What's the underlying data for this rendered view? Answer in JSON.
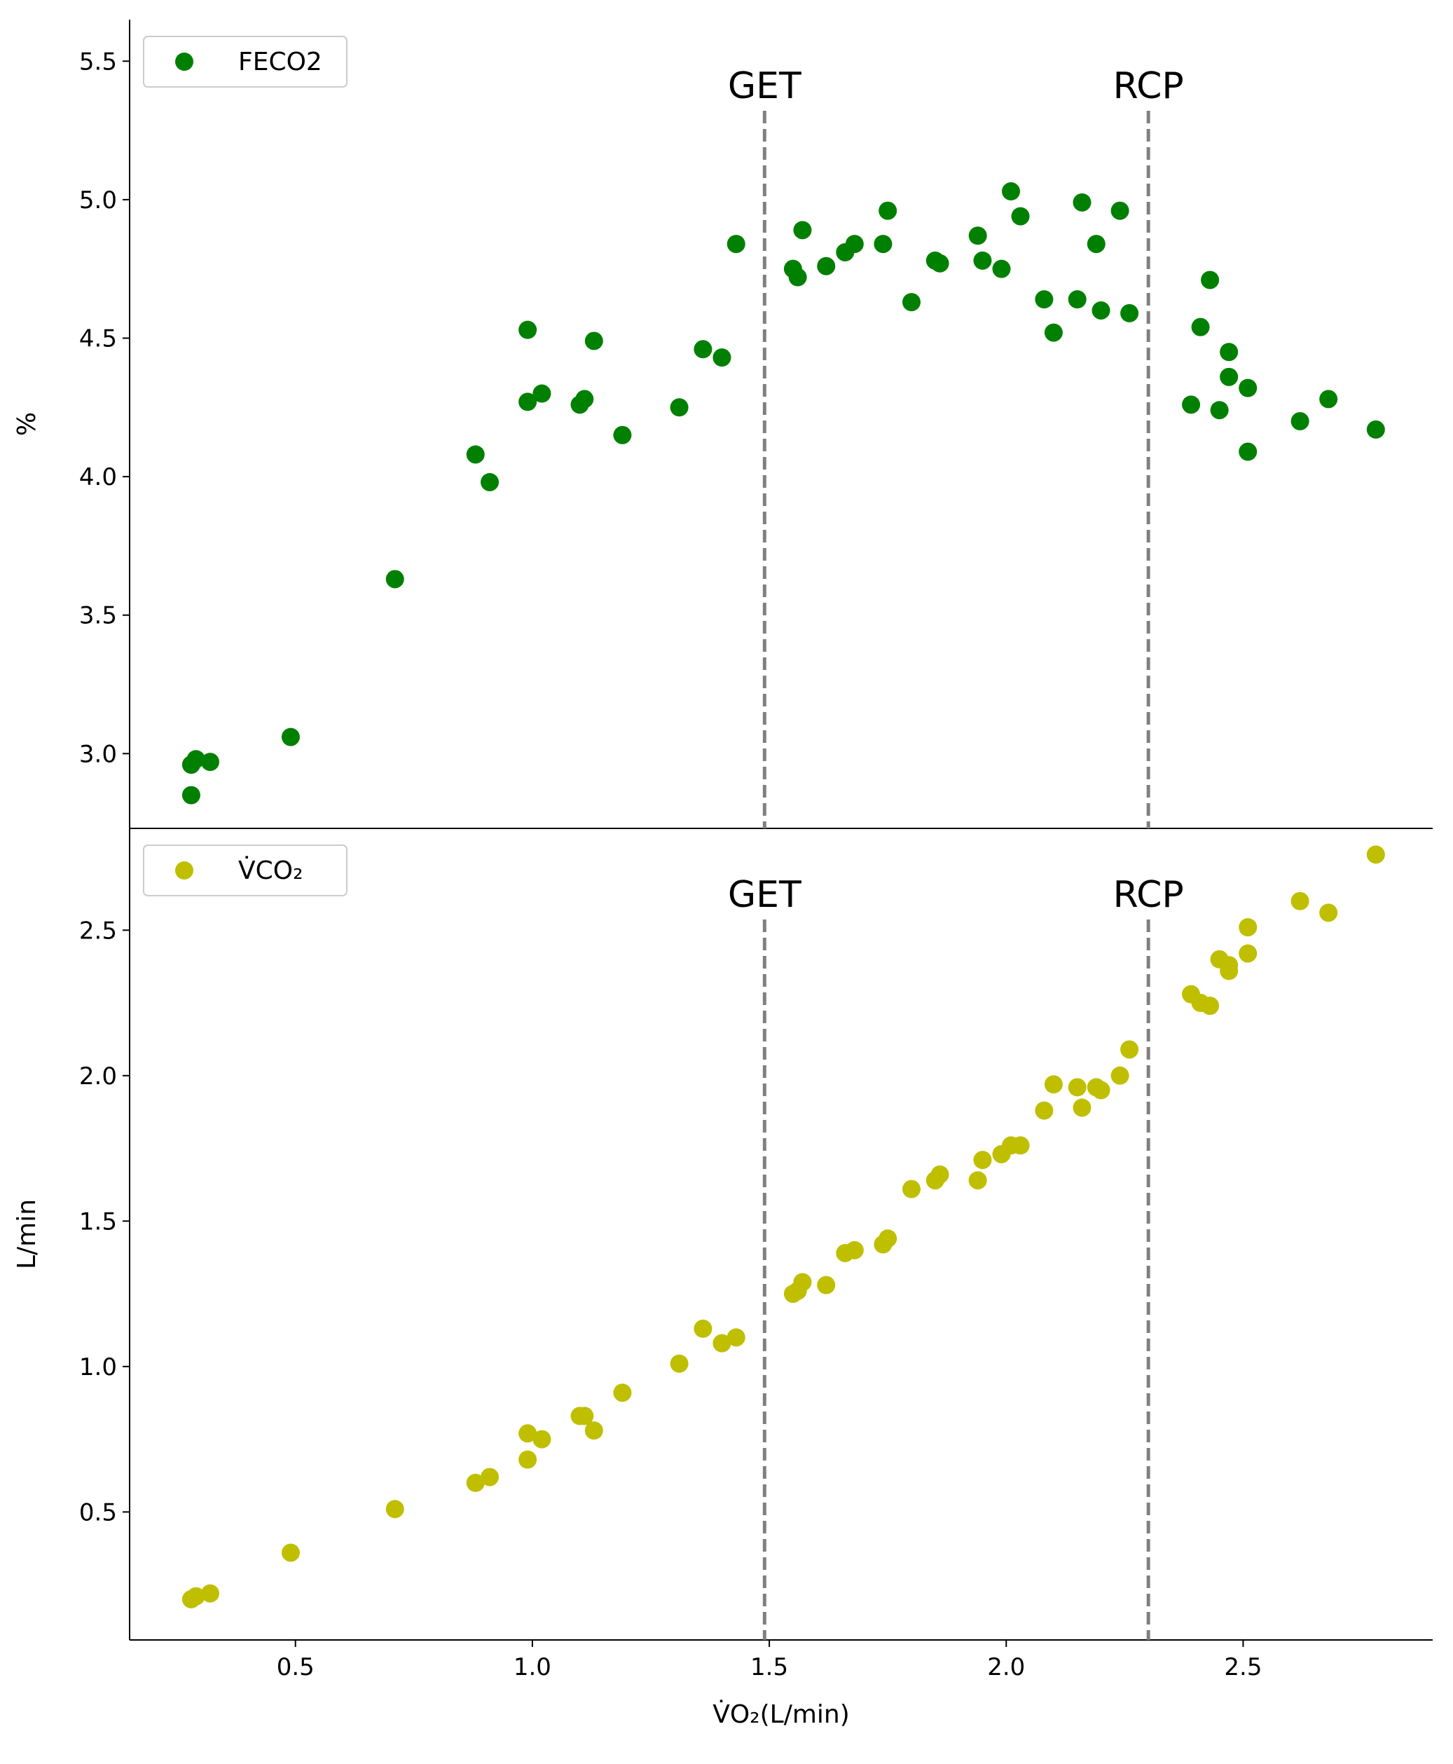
{
  "chart_data": [
    {
      "type": "scatter",
      "ylabel": "%",
      "ylim": [
        2.73,
        5.65
      ],
      "xlim": [
        0.15,
        2.9
      ],
      "yticks": [
        "3.0",
        "3.5",
        "4.0",
        "4.5",
        "5.0",
        "5.5"
      ],
      "legend": {
        "position": "upper-left"
      },
      "series": [
        {
          "name": "FECO2",
          "color": "#008000",
          "points": [
            [
              0.28,
              2.85
            ],
            [
              0.28,
              2.96
            ],
            [
              0.29,
              2.98
            ],
            [
              0.32,
              2.97
            ],
            [
              0.49,
              3.06
            ],
            [
              0.71,
              3.63
            ],
            [
              0.88,
              4.08
            ],
            [
              0.91,
              3.98
            ],
            [
              0.99,
              4.27
            ],
            [
              0.99,
              4.53
            ],
            [
              1.02,
              4.3
            ],
            [
              1.1,
              4.26
            ],
            [
              1.11,
              4.28
            ],
            [
              1.13,
              4.49
            ],
            [
              1.19,
              4.15
            ],
            [
              1.31,
              4.25
            ],
            [
              1.36,
              4.46
            ],
            [
              1.4,
              4.43
            ],
            [
              1.43,
              4.84
            ],
            [
              1.55,
              4.75
            ],
            [
              1.56,
              4.72
            ],
            [
              1.57,
              4.89
            ],
            [
              1.62,
              4.76
            ],
            [
              1.66,
              4.81
            ],
            [
              1.68,
              4.84
            ],
            [
              1.74,
              4.84
            ],
            [
              1.75,
              4.96
            ],
            [
              1.8,
              4.63
            ],
            [
              1.85,
              4.78
            ],
            [
              1.86,
              4.77
            ],
            [
              1.94,
              4.87
            ],
            [
              1.95,
              4.78
            ],
            [
              1.99,
              4.75
            ],
            [
              2.01,
              5.03
            ],
            [
              2.03,
              4.94
            ],
            [
              2.08,
              4.64
            ],
            [
              2.1,
              4.52
            ],
            [
              2.15,
              4.64
            ],
            [
              2.16,
              4.99
            ],
            [
              2.19,
              4.84
            ],
            [
              2.2,
              4.6
            ],
            [
              2.24,
              4.96
            ],
            [
              2.26,
              4.59
            ],
            [
              2.39,
              4.26
            ],
            [
              2.41,
              4.54
            ],
            [
              2.43,
              4.71
            ],
            [
              2.45,
              4.24
            ],
            [
              2.47,
              4.45
            ],
            [
              2.47,
              4.36
            ],
            [
              2.51,
              4.32
            ],
            [
              2.51,
              4.09
            ],
            [
              2.62,
              4.2
            ],
            [
              2.68,
              4.28
            ],
            [
              2.78,
              4.17
            ]
          ]
        }
      ],
      "vlines": [
        {
          "x": 1.49,
          "label": "GET",
          "color": "#808080",
          "style": "dashed"
        },
        {
          "x": 2.3,
          "label": "RCP",
          "color": "#808080",
          "style": "dashed"
        }
      ]
    },
    {
      "type": "scatter",
      "xlabel": "V̇O₂(L/min)",
      "ylabel": "L/min",
      "ylim": [
        0.06,
        2.85
      ],
      "xlim": [
        0.15,
        2.9
      ],
      "xticks": [
        "0.5",
        "1.0",
        "1.5",
        "2.0",
        "2.5"
      ],
      "yticks": [
        "0.5",
        "1.0",
        "1.5",
        "2.0",
        "2.5"
      ],
      "legend": {
        "position": "upper-left"
      },
      "series": [
        {
          "name": "V̇CO₂",
          "color": "#bfbf00",
          "points": [
            [
              0.28,
              0.2
            ],
            [
              0.29,
              0.21
            ],
            [
              0.32,
              0.22
            ],
            [
              0.49,
              0.36
            ],
            [
              0.71,
              0.51
            ],
            [
              0.88,
              0.6
            ],
            [
              0.91,
              0.62
            ],
            [
              0.99,
              0.68
            ],
            [
              0.99,
              0.77
            ],
            [
              1.02,
              0.75
            ],
            [
              1.1,
              0.83
            ],
            [
              1.11,
              0.83
            ],
            [
              1.13,
              0.78
            ],
            [
              1.19,
              0.91
            ],
            [
              1.31,
              1.01
            ],
            [
              1.36,
              1.13
            ],
            [
              1.4,
              1.08
            ],
            [
              1.43,
              1.1
            ],
            [
              1.55,
              1.25
            ],
            [
              1.56,
              1.26
            ],
            [
              1.57,
              1.29
            ],
            [
              1.62,
              1.28
            ],
            [
              1.66,
              1.39
            ],
            [
              1.68,
              1.4
            ],
            [
              1.74,
              1.42
            ],
            [
              1.75,
              1.44
            ],
            [
              1.8,
              1.61
            ],
            [
              1.85,
              1.64
            ],
            [
              1.86,
              1.66
            ],
            [
              1.94,
              1.64
            ],
            [
              1.95,
              1.71
            ],
            [
              1.99,
              1.73
            ],
            [
              2.01,
              1.76
            ],
            [
              2.03,
              1.76
            ],
            [
              2.08,
              1.88
            ],
            [
              2.1,
              1.97
            ],
            [
              2.15,
              1.96
            ],
            [
              2.16,
              1.89
            ],
            [
              2.19,
              1.96
            ],
            [
              2.2,
              1.95
            ],
            [
              2.24,
              2.0
            ],
            [
              2.26,
              2.09
            ],
            [
              2.39,
              2.28
            ],
            [
              2.41,
              2.25
            ],
            [
              2.43,
              2.24
            ],
            [
              2.45,
              2.4
            ],
            [
              2.47,
              2.36
            ],
            [
              2.47,
              2.38
            ],
            [
              2.51,
              2.42
            ],
            [
              2.51,
              2.51
            ],
            [
              2.62,
              2.6
            ],
            [
              2.68,
              2.56
            ],
            [
              2.78,
              2.76
            ]
          ]
        }
      ],
      "vlines": [
        {
          "x": 1.49,
          "label": "GET",
          "color": "#808080",
          "style": "dashed"
        },
        {
          "x": 2.3,
          "label": "RCP",
          "color": "#808080",
          "style": "dashed"
        }
      ]
    }
  ]
}
